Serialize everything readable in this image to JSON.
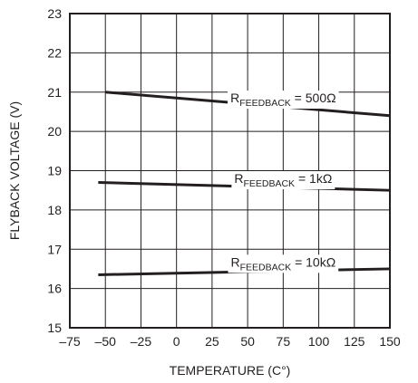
{
  "chart_data": {
    "type": "line",
    "xlabel": "TEMPERATURE (C°)",
    "ylabel": "FLYBACK VOLTAGE (V)",
    "xlim": [
      -75,
      150
    ],
    "ylim": [
      15,
      23
    ],
    "x_ticks": [
      "–75",
      "–50",
      "–25",
      "0",
      "25",
      "50",
      "75",
      "100",
      "125",
      "150"
    ],
    "y_ticks": [
      "15",
      "16",
      "17",
      "18",
      "19",
      "20",
      "21",
      "22",
      "23"
    ],
    "grid": true,
    "series": [
      {
        "label_main": "R",
        "label_sub": "FEEDBACK",
        "label_value": " = 500Ω",
        "x": [
          -50,
          150
        ],
        "y": [
          21.0,
          20.4
        ]
      },
      {
        "label_main": "R",
        "label_sub": "FEEDBACK",
        "label_value": " = 1kΩ",
        "x": [
          -55,
          150
        ],
        "y": [
          18.7,
          18.5
        ]
      },
      {
        "label_main": "R",
        "label_sub": "FEEDBACK",
        "label_value": " = 10kΩ",
        "x": [
          -55,
          150
        ],
        "y": [
          16.35,
          16.5
        ]
      }
    ],
    "colors": {
      "line": "#231f20",
      "grid": "#231f20",
      "background": "#ffffff"
    }
  }
}
